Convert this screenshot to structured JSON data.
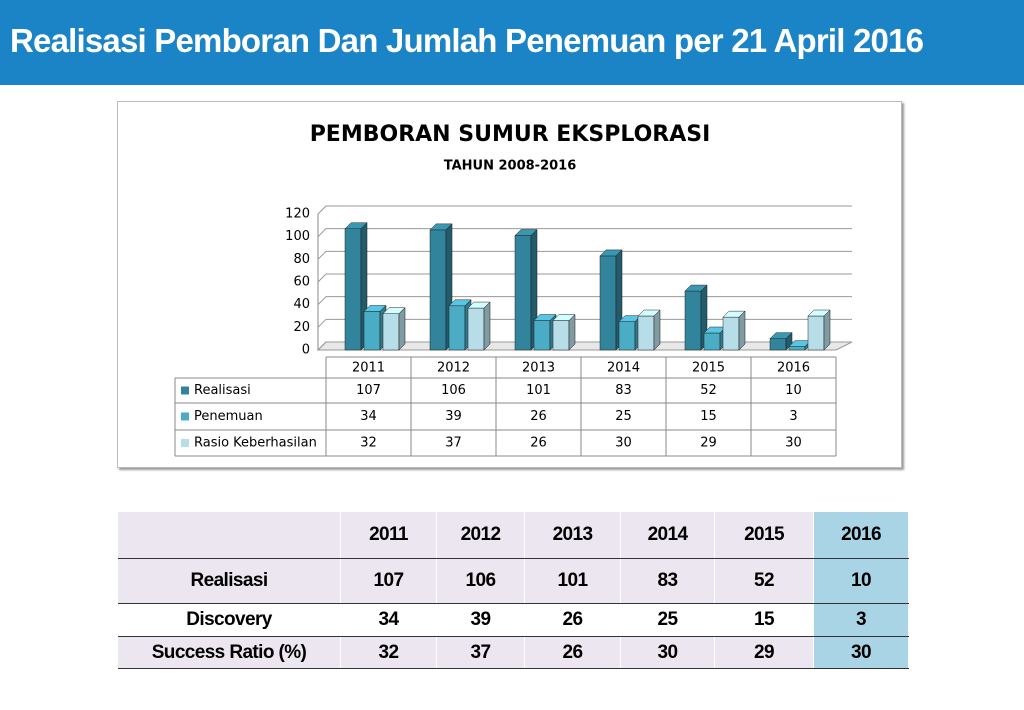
{
  "header": {
    "title": "Realisasi Pemboran Dan Jumlah Penemuan per 21 April 2016"
  },
  "chart_data": {
    "type": "bar",
    "title": "PEMBORAN SUMUR EKSPLORASI",
    "subtitle": "TAHUN 2008-2016",
    "categories": [
      "2011",
      "2012",
      "2013",
      "2014",
      "2015",
      "2016"
    ],
    "series": [
      {
        "name": "Realisasi",
        "color": "#31849b",
        "values": [
          107,
          106,
          101,
          83,
          52,
          10
        ]
      },
      {
        "name": "Penemuan",
        "color": "#4bacc6",
        "values": [
          34,
          39,
          26,
          25,
          15,
          3
        ]
      },
      {
        "name": "Rasio Keberhasilan",
        "color": "#b7dde8",
        "values": [
          32,
          37,
          26,
          30,
          29,
          30
        ]
      }
    ],
    "ylim": [
      0,
      120
    ],
    "yticks": [
      0,
      20,
      40,
      60,
      80,
      100,
      120
    ],
    "grid": true
  },
  "table": {
    "columns": [
      "2011",
      "2012",
      "2013",
      "2014",
      "2015",
      "2016"
    ],
    "rows": [
      {
        "label": "Realisasi",
        "values": [
          107,
          106,
          101,
          83,
          52,
          10
        ]
      },
      {
        "label": "Discovery",
        "values": [
          34,
          39,
          26,
          25,
          15,
          3
        ]
      },
      {
        "label": "Success Ratio (%)",
        "values": [
          32,
          37,
          26,
          30,
          29,
          30
        ]
      }
    ]
  }
}
